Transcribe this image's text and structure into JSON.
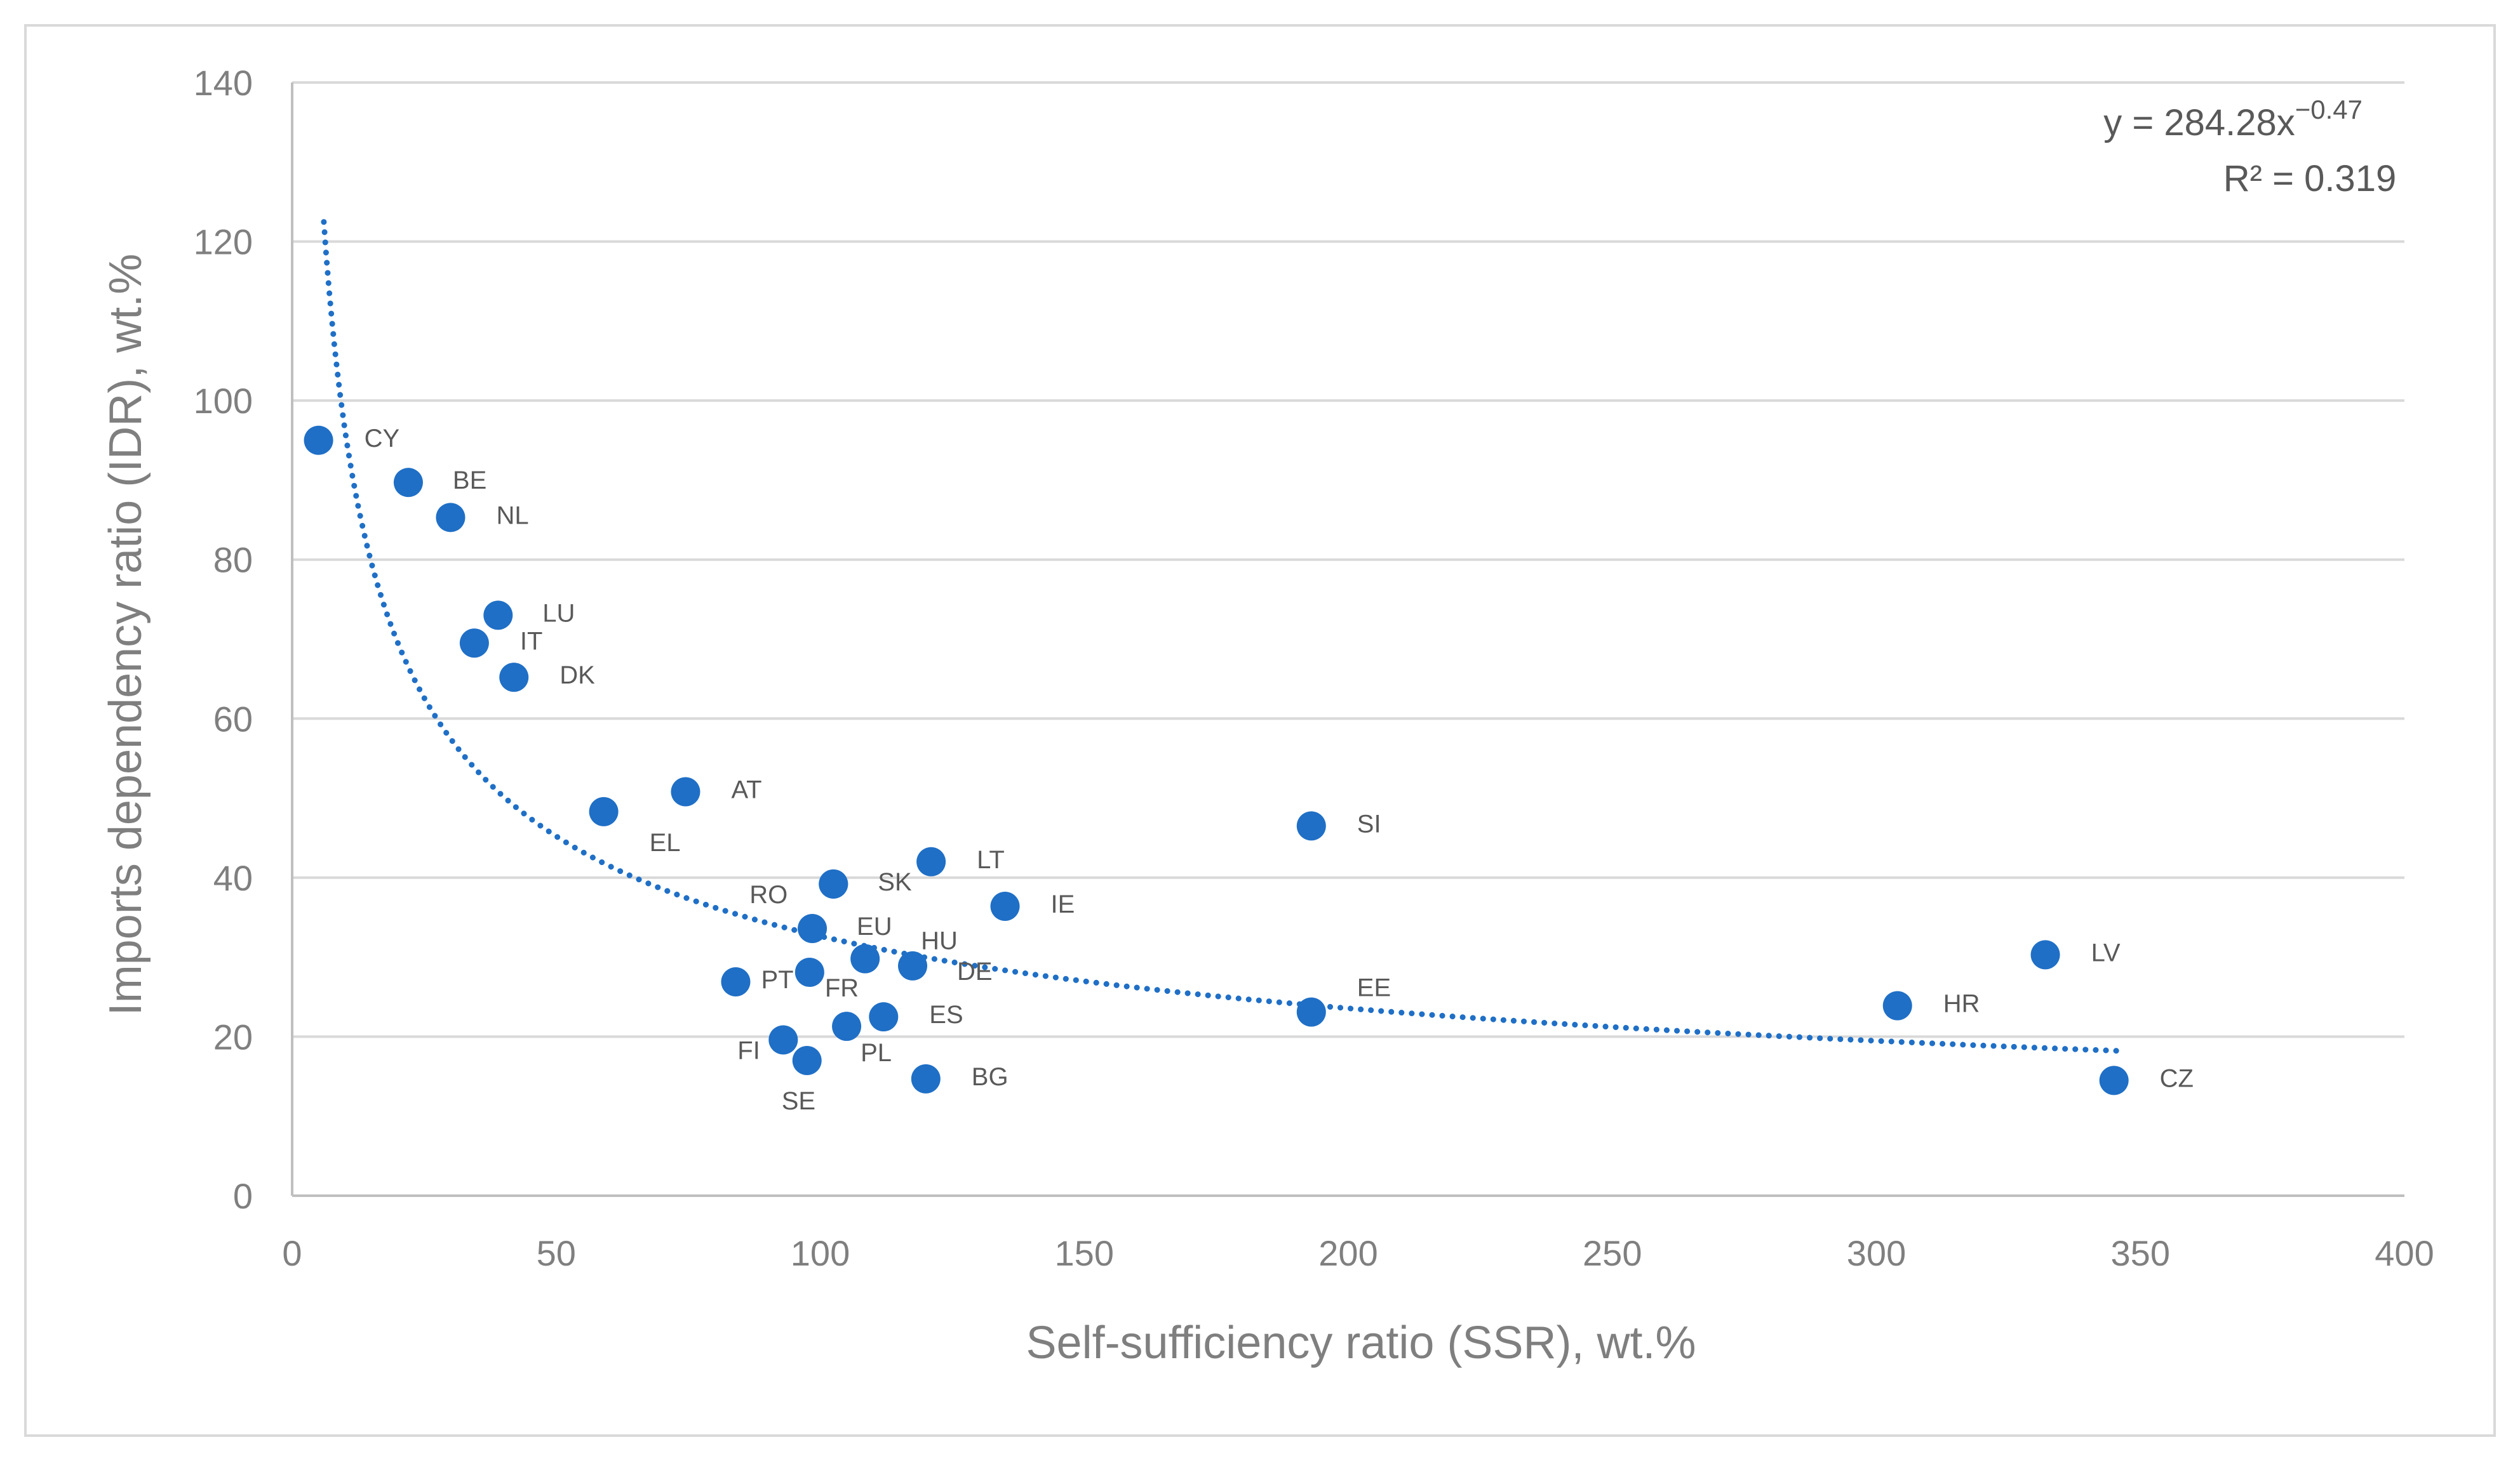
{
  "chart_data": {
    "type": "scatter",
    "title": "",
    "xlabel": "Self-sufficiency ratio (SSR), wt.%",
    "ylabel": "Imports dependency ratio (IDR), wt.%",
    "xlim": [
      0,
      400
    ],
    "ylim": [
      0,
      140
    ],
    "x_ticks": [
      "0",
      "50",
      "100",
      "150",
      "200",
      "250",
      "300",
      "350",
      "400"
    ],
    "y_ticks": [
      "0",
      "20",
      "40",
      "60",
      "80",
      "100",
      "120",
      "140"
    ],
    "grid": "horizontal",
    "marker_color": "#1f6fc6",
    "trendline": {
      "type": "power",
      "a": 284.28,
      "b": -0.47,
      "x_range": [
        6,
        346
      ],
      "color": "#1f6fc6",
      "equation_prefix": "y = 284.28x",
      "equation_exponent": "−0.47",
      "r2_label": "R² = 0.319",
      "position": "top-right"
    },
    "points": [
      {
        "label": "CY",
        "x": 5,
        "y": 95
      },
      {
        "label": "BE",
        "x": 22,
        "y": 89.7
      },
      {
        "label": "NL",
        "x": 30,
        "y": 85.3
      },
      {
        "label": "LU",
        "x": 39,
        "y": 73
      },
      {
        "label": "IT",
        "x": 34.5,
        "y": 69.5
      },
      {
        "label": "DK",
        "x": 42,
        "y": 65.2
      },
      {
        "label": "EL",
        "x": 59,
        "y": 48.3
      },
      {
        "label": "AT",
        "x": 74.5,
        "y": 50.8
      },
      {
        "label": "RO",
        "x": 102.5,
        "y": 39.2
      },
      {
        "label": "SK",
        "x": 102.5,
        "y": 39.2
      },
      {
        "label": "LT",
        "x": 121,
        "y": 42
      },
      {
        "label": "IE",
        "x": 135,
        "y": 36.4
      },
      {
        "label": "EU",
        "x": 98.5,
        "y": 33.6
      },
      {
        "label": "HU",
        "x": 108.5,
        "y": 29.8
      },
      {
        "label": "DE",
        "x": 117.5,
        "y": 28.9
      },
      {
        "label": "FR",
        "x": 98,
        "y": 28.1
      },
      {
        "label": "PT",
        "x": 84,
        "y": 26.9
      },
      {
        "label": "ES",
        "x": 112,
        "y": 22.5
      },
      {
        "label": "PL",
        "x": 105,
        "y": 21.3
      },
      {
        "label": "FI",
        "x": 93,
        "y": 19.6
      },
      {
        "label": "SE",
        "x": 97.5,
        "y": 17
      },
      {
        "label": "BG",
        "x": 120,
        "y": 14.7
      },
      {
        "label": "SI",
        "x": 193,
        "y": 46.5
      },
      {
        "label": "EE",
        "x": 193,
        "y": 23.1
      },
      {
        "label": "LV",
        "x": 332,
        "y": 30.3
      },
      {
        "label": "HR",
        "x": 304,
        "y": 23.9
      },
      {
        "label": "CZ",
        "x": 345,
        "y": 14.5
      }
    ]
  }
}
